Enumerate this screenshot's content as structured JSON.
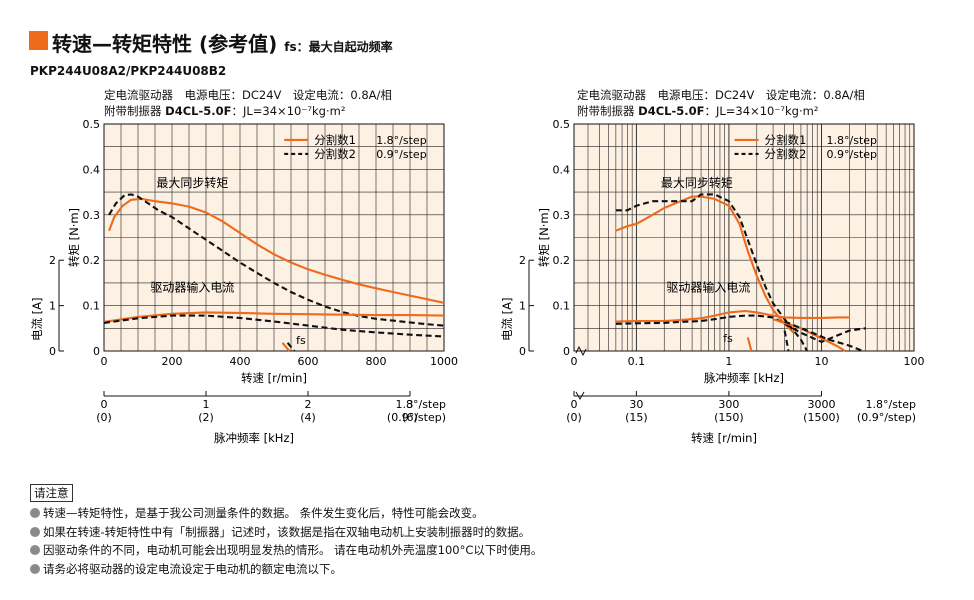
{
  "header": {
    "title_main": "转速—转矩特性 (参考值)",
    "title_sub": "fs：最大自起动频率",
    "model": "PKP244U08A2/PKP244U08B2"
  },
  "notes": {
    "heading": "请注意",
    "items": [
      "转速—转矩特性，是基于我公司测量条件的数据。 条件发生变化后，特性可能会改变。",
      "如果在转速-转矩特性中有「制振器」记述时，该数据是指在双轴电动机上安装制振器时的数据。",
      "因驱动条件的不同，电动机可能会出现明显发热的情形。 请在电动机外壳温度100°C以下时使用。",
      "请务必将驱动器的设定电流设定于电动机的额定电流以下。"
    ]
  },
  "colors": {
    "accent": "#ee6a1d",
    "panel_bg": "#fdf1e4",
    "grid": "#222222"
  },
  "chart_data": [
    {
      "type": "line",
      "condition_line1": "定电流驱动器　电源电压：DC24V　设定电流：0.8A/相",
      "condition_line2_prefix": "附带制振器 ",
      "condition_line2_bold": "D4CL-5.0F",
      "condition_line2_suffix": "：JL=34×10⁻⁷kg·m²",
      "x_scale": "linear",
      "xlim": [
        0,
        1000
      ],
      "x_ticks": [
        0,
        200,
        400,
        600,
        800,
        1000
      ],
      "x_tick_labels": [
        "0",
        "200",
        "400",
        "600",
        "800",
        "1000"
      ],
      "xlabel": "转速 [r/min]",
      "ylim": [
        0,
        0.5
      ],
      "y_ticks": [
        0,
        0.1,
        0.2,
        0.3,
        0.4,
        0.5
      ],
      "y_tick_labels": [
        "0",
        "0.1",
        "0.2",
        "0.3",
        "0.4",
        "0.5"
      ],
      "ylabel": "转矩 [N·m]",
      "current_ylabel": "电流 [A]",
      "current_ticks": [
        0,
        1,
        2
      ],
      "current_tick_labels": [
        "0",
        "1",
        "2"
      ],
      "legend": [
        {
          "name": "分割数1",
          "value": "1.8°/step",
          "style": "solid"
        },
        {
          "name": "分割数2",
          "value": "0.9°/step",
          "style": "dashed"
        }
      ],
      "annotations": {
        "pullout": "最大同步转矩",
        "current": "驱动器输入电流",
        "fs": "fs"
      },
      "series": [
        {
          "name": "分割数1",
          "role": "torque",
          "style": "solid",
          "x": [
            15,
            30,
            55,
            80,
            110,
            150,
            200,
            250,
            300,
            350,
            400,
            450,
            500,
            550,
            600,
            650,
            700,
            750,
            800,
            850,
            900,
            950,
            1000
          ],
          "y": [
            0.265,
            0.295,
            0.32,
            0.333,
            0.335,
            0.33,
            0.325,
            0.318,
            0.305,
            0.285,
            0.26,
            0.235,
            0.213,
            0.195,
            0.18,
            0.168,
            0.157,
            0.147,
            0.138,
            0.13,
            0.122,
            0.114,
            0.106
          ]
        },
        {
          "name": "分割数2",
          "role": "torque",
          "style": "dashed",
          "x": [
            15,
            35,
            60,
            80,
            100,
            130,
            160,
            200,
            250,
            300,
            350,
            400,
            450,
            500,
            550,
            600,
            650,
            700,
            750,
            800,
            850,
            900,
            950,
            1000
          ],
          "y": [
            0.3,
            0.325,
            0.343,
            0.345,
            0.34,
            0.325,
            0.31,
            0.295,
            0.27,
            0.245,
            0.22,
            0.195,
            0.172,
            0.15,
            0.13,
            0.113,
            0.098,
            0.086,
            0.077,
            0.071,
            0.067,
            0.063,
            0.059,
            0.056
          ]
        },
        {
          "name": "分割数1",
          "role": "current",
          "style": "solid",
          "x": [
            0,
            100,
            200,
            300,
            400,
            500,
            600,
            700,
            800,
            900,
            1000
          ],
          "y": [
            0.064,
            0.075,
            0.082,
            0.085,
            0.084,
            0.082,
            0.081,
            0.08,
            0.079,
            0.079,
            0.078
          ]
        },
        {
          "name": "分割数2",
          "role": "current",
          "style": "dashed",
          "x": [
            0,
            100,
            200,
            300,
            400,
            500,
            600,
            700,
            800,
            900,
            1000
          ],
          "y": [
            0.062,
            0.072,
            0.078,
            0.078,
            0.073,
            0.065,
            0.056,
            0.047,
            0.041,
            0.036,
            0.032
          ]
        }
      ],
      "fs_marks": [
        {
          "style": "solid",
          "x": [
            525,
            545
          ],
          "y": [
            0.018,
            0.0
          ]
        },
        {
          "style": "dashed",
          "x": [
            540,
            560
          ],
          "y": [
            0.018,
            0.0
          ]
        }
      ],
      "secondary_axis": {
        "label": "脉冲频率 [kHz]",
        "ticks_rpm": [
          0,
          300,
          600,
          900
        ],
        "ticks": [
          {
            "main": "0",
            "alt": "(0)"
          },
          {
            "main": "1",
            "alt": "(2)"
          },
          {
            "main": "2",
            "alt": "(4)"
          },
          {
            "main": "3",
            "alt": "(6)"
          }
        ],
        "unit_main": "1.8°/step",
        "unit_alt": "(0.9°/step)"
      }
    },
    {
      "type": "line",
      "condition_line1": "定电流驱动器　电源电压：DC24V　设定电流：0.8A/相",
      "condition_line2_prefix": "附带制振器 ",
      "condition_line2_bold": "D4CL-5.0F",
      "condition_line2_suffix": "：JL=34×10⁻⁷kg·m²",
      "x_scale": "log",
      "xlim": [
        0.03,
        100
      ],
      "x_ticks": [
        0.1,
        1,
        10,
        100
      ],
      "x_tick_labels": [
        "0.1",
        "1",
        "10",
        "100"
      ],
      "x_zero_label": "0",
      "xlabel": "脉冲频率 [kHz]",
      "ylim": [
        0,
        0.5
      ],
      "y_ticks": [
        0,
        0.1,
        0.2,
        0.3,
        0.4,
        0.5
      ],
      "y_tick_labels": [
        "0",
        "0.1",
        "0.2",
        "0.3",
        "0.4",
        "0.5"
      ],
      "ylabel": "转矩 [N·m]",
      "current_ylabel": "电流 [A]",
      "current_ticks": [
        0,
        1,
        2
      ],
      "current_tick_labels": [
        "0",
        "1",
        "2"
      ],
      "legend": [
        {
          "name": "分割数1",
          "value": "1.8°/step",
          "style": "solid"
        },
        {
          "name": "分割数2",
          "value": "0.9°/step",
          "style": "dashed"
        }
      ],
      "annotations": {
        "pullout": "最大同步转矩",
        "current": "驱动器输入电流",
        "fs": "fs"
      },
      "series": [
        {
          "name": "分割数1",
          "role": "torque",
          "style": "solid",
          "x": [
            0.06,
            0.08,
            0.1,
            0.15,
            0.2,
            0.3,
            0.4,
            0.5,
            0.7,
            1.0,
            1.3,
            1.6,
            2.0,
            2.5,
            3.0,
            4.0,
            5.0
          ],
          "y": [
            0.265,
            0.275,
            0.28,
            0.3,
            0.315,
            0.33,
            0.34,
            0.34,
            0.335,
            0.32,
            0.28,
            0.22,
            0.165,
            0.12,
            0.09,
            0.06,
            0.04
          ]
        },
        {
          "name": "分割数2",
          "role": "torque",
          "style": "dashed",
          "x": [
            0.06,
            0.08,
            0.1,
            0.15,
            0.2,
            0.3,
            0.4,
            0.5,
            0.7,
            1.0,
            1.3,
            1.6,
            2.0,
            2.5,
            3.0,
            4.0,
            5.0,
            6.0,
            7.0
          ],
          "y": [
            0.31,
            0.31,
            0.32,
            0.33,
            0.33,
            0.33,
            0.33,
            0.345,
            0.345,
            0.33,
            0.295,
            0.245,
            0.19,
            0.14,
            0.105,
            0.07,
            0.045,
            0.025,
            0.0
          ]
        },
        {
          "name": "分割数1",
          "role": "current",
          "style": "solid",
          "x": [
            0.06,
            0.1,
            0.2,
            0.3,
            0.5,
            0.7,
            1.0,
            1.5,
            2.0,
            3.0,
            4.0,
            6.0,
            10,
            15,
            20
          ],
          "y": [
            0.065,
            0.066,
            0.066,
            0.068,
            0.072,
            0.078,
            0.085,
            0.088,
            0.085,
            0.078,
            0.074,
            0.073,
            0.073,
            0.074,
            0.074
          ]
        },
        {
          "name": "分割数2",
          "role": "current",
          "style": "dashed",
          "x": [
            0.06,
            0.1,
            0.2,
            0.3,
            0.5,
            0.7,
            1.0,
            1.5,
            2.0,
            3.0,
            4.0,
            6.0,
            10,
            20,
            30
          ],
          "y": [
            0.06,
            0.061,
            0.062,
            0.064,
            0.066,
            0.07,
            0.075,
            0.078,
            0.078,
            0.074,
            0.06,
            0.04,
            0.02,
            0.045,
            0.05
          ]
        }
      ],
      "extra_curves": [
        {
          "style": "solid",
          "x": [
            3.0,
            6.0,
            10,
            15,
            18
          ],
          "y": [
            0.07,
            0.05,
            0.028,
            0.01,
            0.0
          ]
        },
        {
          "style": "dashed",
          "x": [
            4.0,
            7.0,
            12,
            20,
            28
          ],
          "y": [
            0.065,
            0.045,
            0.025,
            0.012,
            0.0
          ]
        }
      ],
      "fs_marks": [
        {
          "style": "solid",
          "x": [
            1.6,
            1.75
          ],
          "y": [
            0.03,
            0.0
          ]
        },
        {
          "style": "dashed",
          "x": [
            4.0,
            4.4
          ],
          "y": [
            0.045,
            0.0
          ]
        }
      ],
      "secondary_axis": {
        "label": "转速 [r/min]",
        "zero": {
          "main": "0",
          "alt": "(0)"
        },
        "ticks_khz": [
          0.1,
          1,
          10
        ],
        "ticks": [
          {
            "main": "30",
            "alt": "(15)"
          },
          {
            "main": "300",
            "alt": "(150)"
          },
          {
            "main": "3000",
            "alt": "(1500)"
          }
        ],
        "unit_main": "1.8°/step",
        "unit_alt": "(0.9°/step)"
      }
    }
  ]
}
